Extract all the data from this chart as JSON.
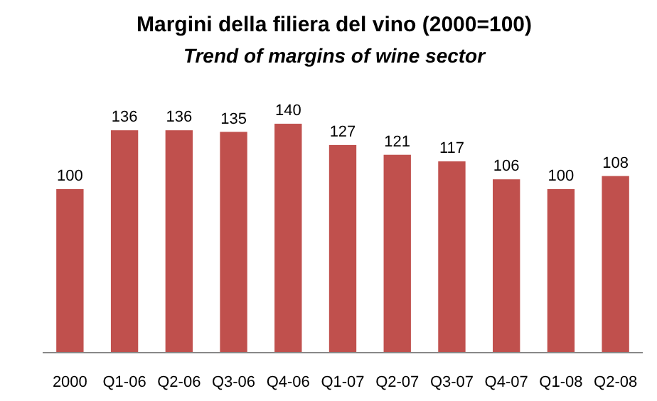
{
  "chart_data": {
    "type": "bar",
    "title": "Margini della filiera del vino (2000=100)",
    "subtitle": "Trend of margins of wine sector",
    "categories": [
      "2000",
      "Q1-06",
      "Q2-06",
      "Q3-06",
      "Q4-06",
      "Q1-07",
      "Q2-07",
      "Q3-07",
      "Q4-07",
      "Q1-08",
      "Q2-08"
    ],
    "values": [
      100,
      136,
      136,
      135,
      140,
      127,
      121,
      117,
      106,
      100,
      108
    ],
    "color": "#c0504d",
    "data_labels": true
  }
}
